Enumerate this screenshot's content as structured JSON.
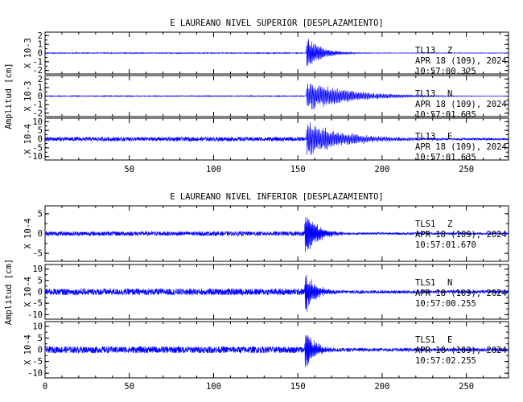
{
  "chart_data": [
    {
      "type": "line",
      "title": "E LAUREANO NIVEL SUPERIOR [DESPLAZAMIENTO]",
      "ylabel": "Amplitud [cm]",
      "xlim": [
        0,
        275
      ],
      "x_ticks": [
        50,
        100,
        150,
        200,
        250
      ],
      "line_color": "#0000ff",
      "series": [
        {
          "station": "TL13",
          "component": "Z",
          "date": "APR 18 (109), 2024",
          "time": "10:57:00.325",
          "scale": "X 10-3",
          "ylim": [
            -2.4,
            2.4
          ],
          "y_ticks": [
            -2,
            -1,
            0,
            1,
            2
          ],
          "onset": 155,
          "peak": 1.9,
          "decay": 9,
          "period": 0.6,
          "pre_noise": 0.02
        },
        {
          "station": "TL13",
          "component": "N",
          "date": "APR 18 (109), 2024",
          "time": "10:57:01.635",
          "scale": "X 10-3",
          "ylim": [
            -2.4,
            2.4
          ],
          "y_ticks": [
            -2,
            -1,
            0,
            1,
            2
          ],
          "onset": 155,
          "peak": 1.9,
          "decay": 24,
          "period": 0.7,
          "pre_noise": 0.02
        },
        {
          "station": "TL13",
          "component": "E",
          "date": "APR 18 (109), 2024",
          "time": "10:57:01.635",
          "scale": "X 10-4",
          "ylim": [
            -12,
            12
          ],
          "y_ticks": [
            -10,
            -5,
            0,
            5,
            10
          ],
          "onset": 155,
          "peak": 10,
          "decay": 22,
          "period": 0.7,
          "pre_noise": 0.1
        }
      ]
    },
    {
      "type": "line",
      "title": "E LAUREANO NIVEL INFERIOR [DESPLAZAMIENTO]",
      "ylabel": "Amplitud [cm]",
      "xlim": [
        0,
        275
      ],
      "x_ticks": [
        0,
        50,
        100,
        150,
        200,
        250
      ],
      "line_color": "#0000ff",
      "series": [
        {
          "station": "TLS1",
          "component": "Z",
          "date": "APR 18 (109), 2024",
          "time": "10:57:01.670",
          "scale": "X 10-4",
          "ylim": [
            -7,
            7
          ],
          "y_ticks": [
            -5,
            0,
            5
          ],
          "onset": 154,
          "peak": 6.5,
          "decay": 7,
          "period": 0.5,
          "pre_noise": 0.08
        },
        {
          "station": "TLS1",
          "component": "N",
          "date": "APR 18 (109), 2024",
          "time": "10:57:00.255",
          "scale": "X 10-4",
          "ylim": [
            -12,
            12
          ],
          "y_ticks": [
            -10,
            -5,
            0,
            5,
            10
          ],
          "onset": 154,
          "peak": 10,
          "decay": 6,
          "period": 0.5,
          "pre_noise": 0.12
        },
        {
          "station": "TLS1",
          "component": "E",
          "date": "APR 18 (109), 2024",
          "time": "10:57:02.255",
          "scale": "X 10-4",
          "ylim": [
            -12,
            12
          ],
          "y_ticks": [
            -10,
            -5,
            0,
            5,
            10
          ],
          "onset": 154,
          "peak": 10,
          "decay": 6,
          "period": 0.5,
          "pre_noise": 0.12
        }
      ]
    }
  ]
}
